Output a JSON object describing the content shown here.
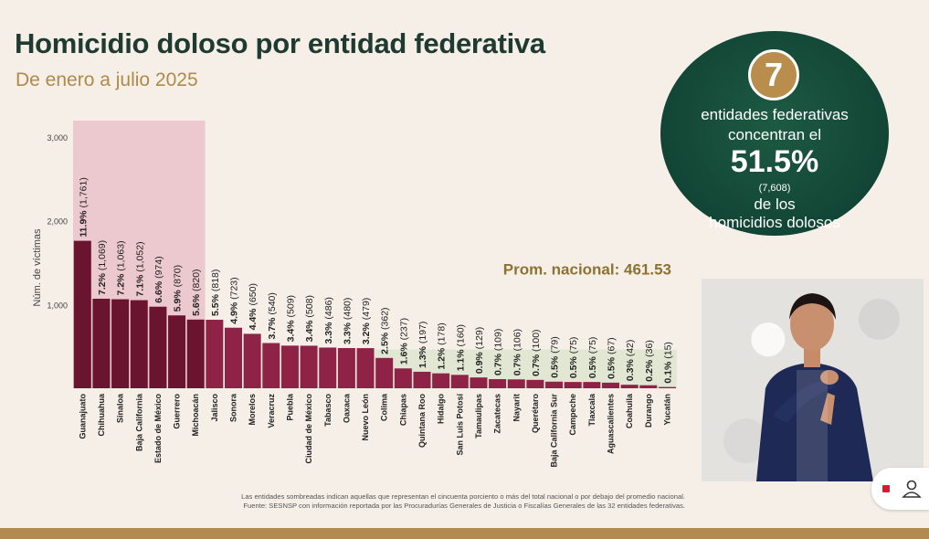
{
  "header": {
    "title": "Homicidio doloso por entidad federativa",
    "subtitle": "De enero a julio 2025"
  },
  "chart_data": {
    "type": "bar",
    "ylabel": "Núm. de víctimas",
    "ylim": [
      0,
      3000
    ],
    "yticks": [
      "1,000",
      "2,000",
      "3,000"
    ],
    "ytick_values": [
      1000,
      2000,
      3000
    ],
    "average": 461.53,
    "average_label": "Prom. nacional: 461.53",
    "highlighted_count": 7,
    "colors": {
      "highlight": "#6a1430",
      "normal": "#8e2347",
      "shade_top": "#ecc9cf",
      "shade_bottom": "#e1e7d3",
      "avg_text": "#8c7233"
    },
    "bars": [
      {
        "state": "Guanajuato",
        "pct": "11.9%",
        "count": "(1,761)",
        "value": 1761
      },
      {
        "state": "Chihuahua",
        "pct": "7.2%",
        "count": "(1,069)",
        "value": 1069
      },
      {
        "state": "Sinaloa",
        "pct": "7.2%",
        "count": "(1,063)",
        "value": 1063
      },
      {
        "state": "Baja California",
        "pct": "7.1%",
        "count": "(1,052)",
        "value": 1052
      },
      {
        "state": "Estado de México",
        "pct": "6.6%",
        "count": "(974)",
        "value": 974
      },
      {
        "state": "Guerrero",
        "pct": "5.9%",
        "count": "(870)",
        "value": 870
      },
      {
        "state": "Michoacán",
        "pct": "5.6%",
        "count": "(820)",
        "value": 820
      },
      {
        "state": "Jalisco",
        "pct": "5.5%",
        "count": "(818)",
        "value": 818
      },
      {
        "state": "Sonora",
        "pct": "4.9%",
        "count": "(723)",
        "value": 723
      },
      {
        "state": "Morelos",
        "pct": "4.4%",
        "count": "(650)",
        "value": 650
      },
      {
        "state": "Veracruz",
        "pct": "3.7%",
        "count": "(540)",
        "value": 540
      },
      {
        "state": "Puebla",
        "pct": "3.4%",
        "count": "(509)",
        "value": 509
      },
      {
        "state": "Ciudad de México",
        "pct": "3.4%",
        "count": "(508)",
        "value": 508
      },
      {
        "state": "Tabasco",
        "pct": "3.3%",
        "count": "(486)",
        "value": 486
      },
      {
        "state": "Oaxaca",
        "pct": "3.3%",
        "count": "(480)",
        "value": 480
      },
      {
        "state": "Nuevo León",
        "pct": "3.2%",
        "count": "(479)",
        "value": 479
      },
      {
        "state": "Colima",
        "pct": "2.5%",
        "count": "(362)",
        "value": 362
      },
      {
        "state": "Chiapas",
        "pct": "1.6%",
        "count": "(237)",
        "value": 237
      },
      {
        "state": "Quintana Roo",
        "pct": "1.3%",
        "count": "(197)",
        "value": 197
      },
      {
        "state": "Hidalgo",
        "pct": "1.2%",
        "count": "(178)",
        "value": 178
      },
      {
        "state": "San Luis Potosí",
        "pct": "1.1%",
        "count": "(160)",
        "value": 160
      },
      {
        "state": "Tamaulipas",
        "pct": "0.9%",
        "count": "(129)",
        "value": 129
      },
      {
        "state": "Zacatecas",
        "pct": "0.7%",
        "count": "(109)",
        "value": 109
      },
      {
        "state": "Nayarit",
        "pct": "0.7%",
        "count": "(106)",
        "value": 106
      },
      {
        "state": "Querétaro",
        "pct": "0.7%",
        "count": "(100)",
        "value": 100
      },
      {
        "state": "Baja California Sur",
        "pct": "0.5%",
        "count": "(79)",
        "value": 79
      },
      {
        "state": "Campeche",
        "pct": "0.5%",
        "count": "(75)",
        "value": 75
      },
      {
        "state": "Tlaxcala",
        "pct": "0.5%",
        "count": "(75)",
        "value": 75
      },
      {
        "state": "Aguascalientes",
        "pct": "0.5%",
        "count": "(67)",
        "value": 67
      },
      {
        "state": "Coahuila",
        "pct": "0.3%",
        "count": "(42)",
        "value": 42
      },
      {
        "state": "Durango",
        "pct": "0.2%",
        "count": "(36)",
        "value": 36
      },
      {
        "state": "Yucatán",
        "pct": "0.1%",
        "count": "(15)",
        "value": 15
      }
    ]
  },
  "summary": {
    "number": "7",
    "line1": "entidades federativas",
    "line2": "concentran el",
    "percent": "51.5%",
    "count": "(7,608)",
    "line3": "de los",
    "line4": "homicidios dolosos"
  },
  "footnotes": {
    "line1": "Las entidades sombreadas indican aquellas que representan el cincuenta porciento o más del total nacional o por debajo del promedio nacional.",
    "line2": "Fuente: SESNSP con información reportada por las Procuradurías Generales de Justicia o Fiscalías Generales de las 32 entidades federativas."
  }
}
